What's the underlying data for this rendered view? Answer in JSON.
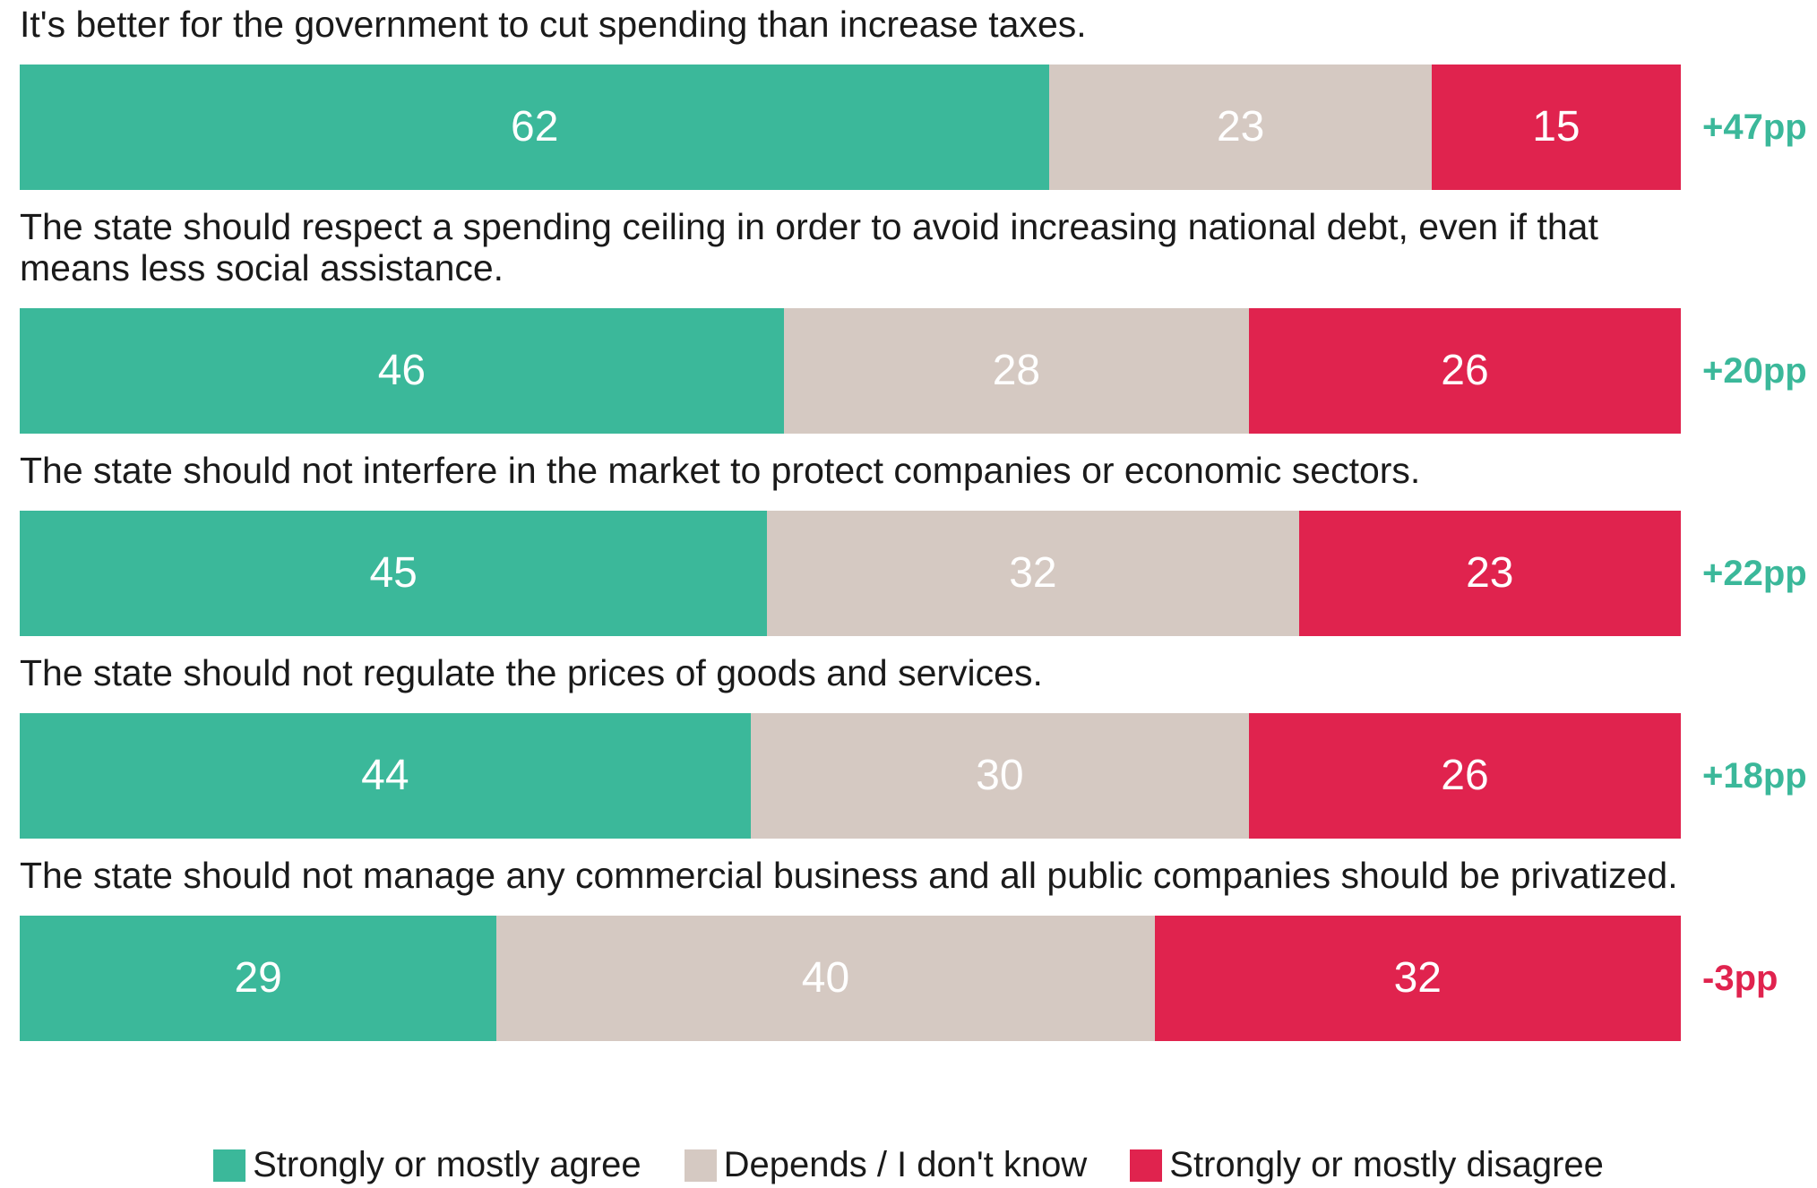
{
  "chart_data": {
    "type": "stacked-bar-horizontal",
    "categories": [
      "It's better for the government to cut spending than increase taxes.",
      "The state should respect a spending ceiling in order to avoid increasing national debt, even if that means less social assistance.",
      "The state should not interfere in the market to protect companies or economic sectors.",
      "The state should not regulate the prices of goods and services.",
      "The state should not manage any commercial business and all public companies should be privatized."
    ],
    "series": [
      {
        "name": "Strongly or mostly agree",
        "color": "#3bb89a",
        "values": [
          62,
          46,
          45,
          44,
          29
        ]
      },
      {
        "name": "Depends / I don't know",
        "color": "#d5c9c2",
        "values": [
          23,
          28,
          32,
          30,
          40
        ]
      },
      {
        "name": "Strongly or mostly disagree",
        "color": "#e0234e",
        "values": [
          15,
          26,
          23,
          26,
          32
        ]
      }
    ],
    "annotations": [
      {
        "text": "+47pp",
        "color": "#3bb89a"
      },
      {
        "text": "+20pp",
        "color": "#3bb89a"
      },
      {
        "text": "+22pp",
        "color": "#3bb89a"
      },
      {
        "text": "+18pp",
        "color": "#3bb89a"
      },
      {
        "text": "-3pp",
        "color": "#e0234e"
      }
    ],
    "legend": "bottom"
  }
}
